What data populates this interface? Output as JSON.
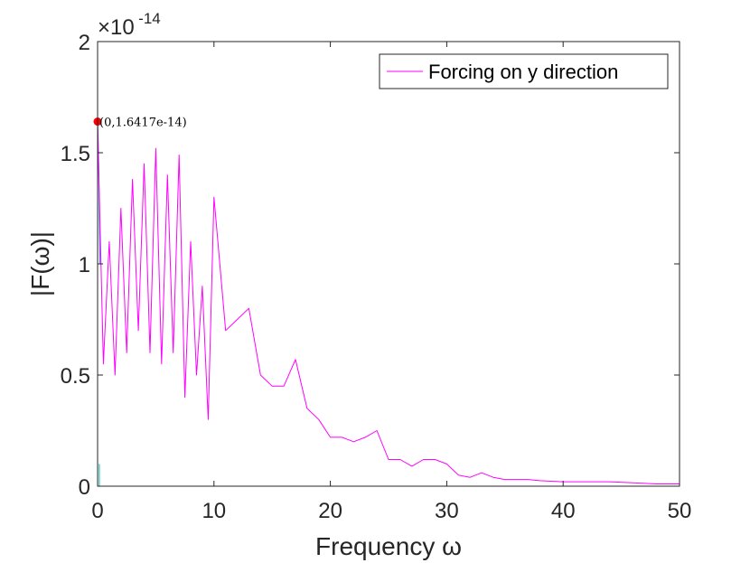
{
  "chart_data": {
    "type": "line",
    "title": "",
    "xlabel": "Frequency ω",
    "ylabel": "|F(ω)|",
    "xlim": [
      0,
      50
    ],
    "ylim": [
      0,
      2
    ],
    "x_ticks": [
      "0",
      "10",
      "20",
      "30",
      "40",
      "50"
    ],
    "y_ticks": [
      "0",
      "0.5",
      "1",
      "1.5",
      "2"
    ],
    "y_multiplier": {
      "base": "×10",
      "exponent": "-14"
    },
    "grid": false,
    "legend": {
      "position": "top-right",
      "entries": [
        "Forcing on y direction"
      ]
    },
    "series": [
      {
        "name": "Forcing on y direction",
        "color": "#ff00ff",
        "x": [
          0,
          0.5,
          1,
          1.5,
          2,
          2.5,
          3,
          3.5,
          4,
          4.5,
          5,
          5.5,
          6,
          6.5,
          7,
          7.5,
          8,
          8.5,
          9,
          9.5,
          10,
          11,
          12,
          13,
          14,
          15,
          16,
          17,
          18,
          19,
          20,
          21,
          22,
          23,
          24,
          25,
          26,
          27,
          28,
          29,
          30,
          31,
          32,
          33,
          34,
          35,
          36,
          37,
          38,
          40,
          42,
          44,
          46,
          48,
          50
        ],
        "values": [
          1.64,
          0.55,
          1.1,
          0.5,
          1.25,
          0.6,
          1.38,
          0.7,
          1.45,
          0.6,
          1.52,
          0.55,
          1.4,
          0.6,
          1.49,
          0.4,
          1.1,
          0.5,
          0.9,
          0.3,
          1.3,
          0.7,
          0.75,
          0.8,
          0.5,
          0.45,
          0.45,
          0.57,
          0.35,
          0.3,
          0.22,
          0.22,
          0.2,
          0.22,
          0.25,
          0.12,
          0.12,
          0.09,
          0.12,
          0.12,
          0.1,
          0.05,
          0.04,
          0.06,
          0.04,
          0.03,
          0.03,
          0.03,
          0.025,
          0.02,
          0.02,
          0.02,
          0.015,
          0.01,
          0.01
        ]
      }
    ],
    "extra_lines": [
      {
        "color": "#4a90e2",
        "x": [
          0,
          0.05,
          0.1,
          0.2
        ],
        "values": [
          1.64,
          1.55,
          1.4,
          1.0
        ]
      },
      {
        "color": "#2ec4b6",
        "x": [
          0.15,
          0.15
        ],
        "values": [
          0.1,
          0.0
        ]
      }
    ],
    "annotations": [
      {
        "x": 0,
        "y": 1.64,
        "text": "(0,1.6417e-14)",
        "marker_color": "#ff0000"
      }
    ]
  }
}
